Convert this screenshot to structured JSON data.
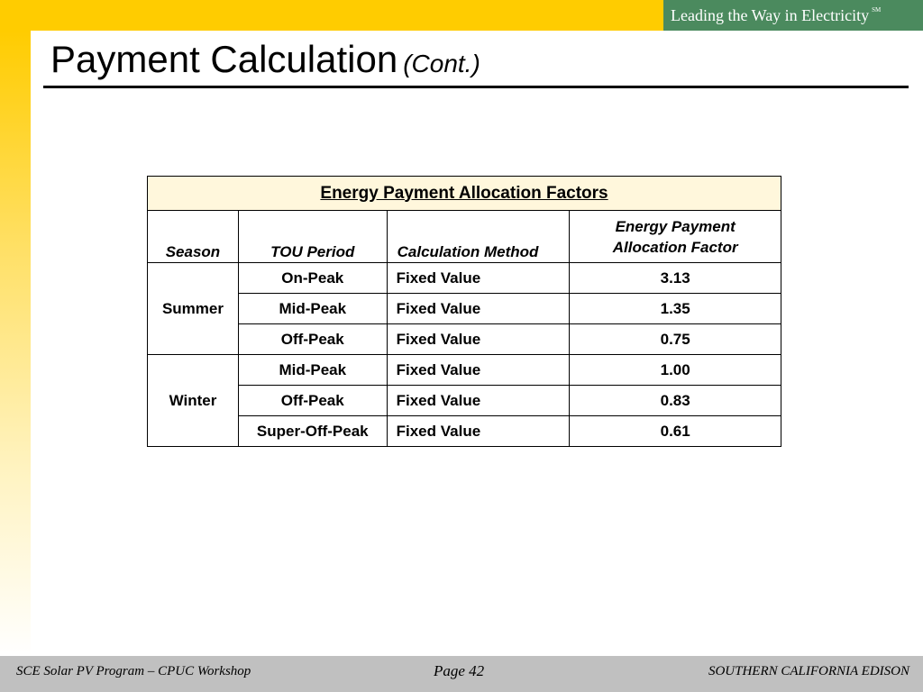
{
  "header": {
    "tagline": "Leading the Way in Electricity",
    "tagline_mark": "SM"
  },
  "slide": {
    "title": "Payment Calculation",
    "title_suffix": "(Cont.)"
  },
  "table": {
    "caption": "Energy Payment Allocation Factors",
    "columns": {
      "season": "Season",
      "tou_period": "TOU Period",
      "method": "Calculation Method",
      "factor_line1": "Energy Payment",
      "factor_line2": "Allocation Factor"
    },
    "groups": [
      {
        "season": "Summer",
        "rows": [
          {
            "period": "On-Peak",
            "method": "Fixed Value",
            "factor": "3.13"
          },
          {
            "period": "Mid-Peak",
            "method": "Fixed Value",
            "factor": "1.35"
          },
          {
            "period": "Off-Peak",
            "method": "Fixed Value",
            "factor": "0.75"
          }
        ]
      },
      {
        "season": "Winter",
        "rows": [
          {
            "period": "Mid-Peak",
            "method": "Fixed Value",
            "factor": "1.00"
          },
          {
            "period": "Off-Peak",
            "method": "Fixed Value",
            "factor": "0.83"
          },
          {
            "period": "Super-Off-Peak",
            "method": "Fixed Value",
            "factor": "0.61"
          }
        ]
      }
    ]
  },
  "footer": {
    "left": "SCE Solar PV Program – CPUC Workshop",
    "center": "Page 42",
    "right": "SOUTHERN CALIFORNIA EDISON"
  },
  "colors": {
    "accent_yellow": "#ffcc00",
    "tagline_green": "#4b8a5e",
    "caption_fill": "#fff7dc",
    "footer_gray": "#c0c0c0"
  }
}
